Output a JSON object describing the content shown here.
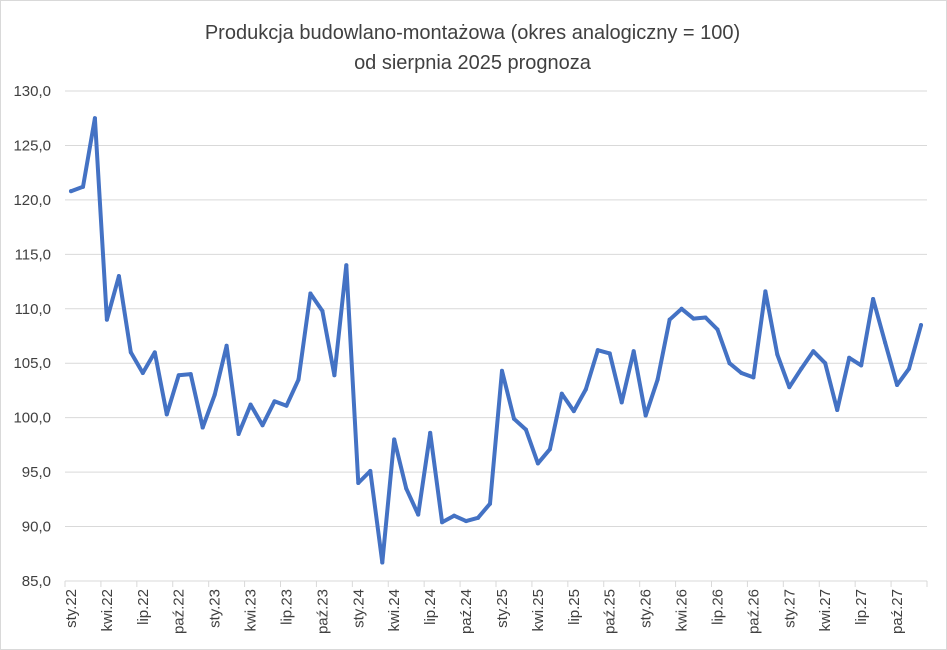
{
  "chart_data": {
    "type": "line",
    "title": "Produkcja budowlano-montażowa (okres analogiczny = 100)",
    "subtitle": "od sierpnia 2025 prognoza",
    "xlabel": "",
    "ylabel": "",
    "ylim": [
      85,
      130
    ],
    "yticks": [
      "85,0",
      "90,0",
      "95,0",
      "100,0",
      "105,0",
      "110,0",
      "115,0",
      "120,0",
      "125,0",
      "130,0"
    ],
    "grid": true,
    "legend": "none",
    "line_color": "#4472c4",
    "tick_labels": [
      "sty.22",
      "kwi.22",
      "lip.22",
      "paź.22",
      "sty.23",
      "kwi.23",
      "lip.23",
      "paź.23",
      "sty.24",
      "kwi.24",
      "lip.24",
      "paź.24",
      "sty.25",
      "kwi.25",
      "lip.25",
      "paź.25",
      "sty.26",
      "kwi.26",
      "lip.26",
      "paź.26",
      "sty.27",
      "kwi.27",
      "lip.27",
      "paź.27"
    ],
    "x": [
      "sty.22",
      "lut.22",
      "mar.22",
      "kwi.22",
      "maj.22",
      "cze.22",
      "lip.22",
      "sie.22",
      "wrz.22",
      "paź.22",
      "lis.22",
      "gru.22",
      "sty.23",
      "lut.23",
      "mar.23",
      "kwi.23",
      "maj.23",
      "cze.23",
      "lip.23",
      "sie.23",
      "wrz.23",
      "paź.23",
      "lis.23",
      "gru.23",
      "sty.24",
      "lut.24",
      "mar.24",
      "kwi.24",
      "maj.24",
      "cze.24",
      "lip.24",
      "sie.24",
      "wrz.24",
      "paź.24",
      "lis.24",
      "gru.24",
      "sty.25",
      "lut.25",
      "mar.25",
      "kwi.25",
      "maj.25",
      "cze.25",
      "lip.25",
      "sie.25",
      "wrz.25",
      "paź.25",
      "lis.25",
      "gru.25",
      "sty.26",
      "lut.26",
      "mar.26",
      "kwi.26",
      "maj.26",
      "cze.26",
      "lip.26",
      "sie.26",
      "wrz.26",
      "paź.26",
      "lis.26",
      "gru.26",
      "sty.27",
      "lut.27",
      "mar.27",
      "kwi.27",
      "maj.27",
      "cze.27",
      "lip.27",
      "sie.27",
      "wrz.27",
      "paź.27",
      "lis.27",
      "gru.27"
    ],
    "values": [
      120.8,
      121.2,
      127.5,
      109.0,
      113.0,
      106.0,
      104.1,
      106.0,
      100.3,
      103.9,
      104.0,
      99.1,
      102.1,
      106.6,
      98.5,
      101.2,
      99.3,
      101.5,
      101.1,
      103.5,
      111.4,
      109.8,
      103.9,
      114.0,
      94.0,
      95.1,
      86.7,
      98.0,
      93.5,
      91.1,
      98.6,
      90.4,
      91.0,
      90.5,
      90.8,
      92.1,
      104.3,
      99.9,
      98.9,
      95.8,
      97.1,
      102.2,
      100.6,
      102.6,
      106.2,
      105.9,
      101.4,
      106.1,
      100.2,
      103.5,
      109.0,
      110.0,
      109.1,
      109.2,
      108.1,
      105.0,
      104.1,
      103.7,
      111.6,
      105.8,
      102.8,
      104.5,
      106.1,
      105.0,
      100.7,
      105.5,
      104.8,
      110.9,
      106.9,
      103.0,
      104.5,
      108.5
    ]
  }
}
